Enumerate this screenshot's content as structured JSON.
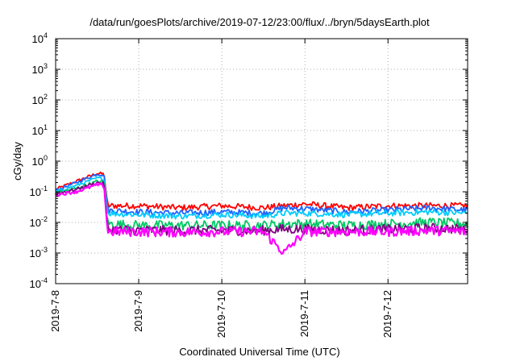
{
  "chart_data": {
    "type": "line",
    "title": "/data/run/goesPlots/archive/2019-07-12/23:00/flux/../bryn/5daysEarth.plot",
    "xlabel": "Coordinated Universal Time (UTC)",
    "ylabel": "cGy/day",
    "yscale": "log",
    "ylim": [
      0.0001,
      10000
    ],
    "xlim": [
      "2019-07-08T00:00",
      "2019-07-12T23:00"
    ],
    "grid": true,
    "y_ticks": [
      {
        "exp": "-4"
      },
      {
        "exp": "-3"
      },
      {
        "exp": "-2"
      },
      {
        "exp": "-1"
      },
      {
        "exp": "0"
      },
      {
        "exp": "1"
      },
      {
        "exp": "2"
      },
      {
        "exp": "3"
      },
      {
        "exp": "4"
      }
    ],
    "y_tick_base": "10",
    "x_ticks": [
      {
        "label": "2019-7-8",
        "day": 0
      },
      {
        "label": "2019-7-9",
        "day": 1
      },
      {
        "label": "2019-7-10",
        "day": 2
      },
      {
        "label": "2019-7-11",
        "day": 3
      },
      {
        "label": "2019-7-12",
        "day": 4
      }
    ],
    "series": [
      {
        "color": "#ff0000",
        "x": [
          "2019-07-08T00:00",
          "2019-07-08T06:00",
          "2019-07-08T12:00",
          "2019-07-08T14:00",
          "2019-07-08T15:00",
          "2019-07-09T00:00",
          "2019-07-09T12:00",
          "2019-07-10T00:00",
          "2019-07-10T12:00",
          "2019-07-10T18:00",
          "2019-07-11T00:00",
          "2019-07-11T12:00",
          "2019-07-12T00:00",
          "2019-07-12T12:00",
          "2019-07-12T23:00"
        ],
        "y": [
          0.12,
          0.22,
          0.4,
          0.38,
          0.035,
          0.035,
          0.03,
          0.035,
          0.03,
          0.035,
          0.04,
          0.03,
          0.035,
          0.035,
          0.035
        ]
      },
      {
        "color": "#1e64ff",
        "x": [
          "2019-07-08T00:00",
          "2019-07-08T06:00",
          "2019-07-08T12:00",
          "2019-07-08T14:00",
          "2019-07-08T15:00",
          "2019-07-09T00:00",
          "2019-07-09T12:00",
          "2019-07-10T00:00",
          "2019-07-10T12:00",
          "2019-07-10T18:00",
          "2019-07-11T00:00",
          "2019-07-11T12:00",
          "2019-07-12T00:00",
          "2019-07-12T12:00",
          "2019-07-12T23:00"
        ],
        "y": [
          0.11,
          0.2,
          0.38,
          0.36,
          0.025,
          0.022,
          0.02,
          0.022,
          0.02,
          0.03,
          0.028,
          0.022,
          0.025,
          0.03,
          0.025
        ]
      },
      {
        "color": "#00ccff",
        "x": [
          "2019-07-08T00:00",
          "2019-07-08T06:00",
          "2019-07-08T12:00",
          "2019-07-08T14:00",
          "2019-07-08T15:00",
          "2019-07-09T00:00",
          "2019-07-09T12:00",
          "2019-07-10T00:00",
          "2019-07-10T12:00",
          "2019-07-10T18:00",
          "2019-07-11T00:00",
          "2019-07-11T12:00",
          "2019-07-12T00:00",
          "2019-07-12T12:00",
          "2019-07-12T23:00"
        ],
        "y": [
          0.1,
          0.16,
          0.28,
          0.27,
          0.02,
          0.018,
          0.016,
          0.018,
          0.016,
          0.02,
          0.02,
          0.018,
          0.02,
          0.022,
          0.02
        ]
      },
      {
        "color": "#00c864",
        "x": [
          "2019-07-08T00:00",
          "2019-07-08T06:00",
          "2019-07-08T12:00",
          "2019-07-08T14:00",
          "2019-07-08T15:00",
          "2019-07-09T00:00",
          "2019-07-09T12:00",
          "2019-07-10T00:00",
          "2019-07-10T12:00",
          "2019-07-10T18:00",
          "2019-07-11T00:00",
          "2019-07-11T12:00",
          "2019-07-12T00:00",
          "2019-07-12T12:00",
          "2019-07-12T23:00"
        ],
        "y": [
          0.09,
          0.13,
          0.22,
          0.21,
          0.009,
          0.008,
          0.008,
          0.008,
          0.008,
          0.009,
          0.009,
          0.008,
          0.009,
          0.01,
          0.009
        ]
      },
      {
        "color": "#800080",
        "x": [
          "2019-07-08T00:00",
          "2019-07-08T06:00",
          "2019-07-08T12:00",
          "2019-07-08T14:00",
          "2019-07-08T15:00",
          "2019-07-09T00:00",
          "2019-07-09T12:00",
          "2019-07-10T00:00",
          "2019-07-10T12:00",
          "2019-07-10T18:00",
          "2019-07-11T00:00",
          "2019-07-11T12:00",
          "2019-07-12T00:00",
          "2019-07-12T12:00",
          "2019-07-12T23:00"
        ],
        "y": [
          0.085,
          0.12,
          0.2,
          0.19,
          0.006,
          0.0055,
          0.0055,
          0.0055,
          0.0055,
          0.006,
          0.006,
          0.0055,
          0.006,
          0.0065,
          0.006
        ]
      },
      {
        "color": "#ff00ff",
        "x": [
          "2019-07-08T00:00",
          "2019-07-08T06:00",
          "2019-07-08T12:00",
          "2019-07-08T14:00",
          "2019-07-08T15:00",
          "2019-07-09T00:00",
          "2019-07-09T12:00",
          "2019-07-10T00:00",
          "2019-07-10T12:00",
          "2019-07-10T18:00",
          "2019-07-11T00:00",
          "2019-07-11T12:00",
          "2019-07-12T00:00",
          "2019-07-12T12:00",
          "2019-07-12T23:00"
        ],
        "y": [
          0.08,
          0.1,
          0.17,
          0.16,
          0.005,
          0.005,
          0.0048,
          0.005,
          0.005,
          0.001,
          0.005,
          0.005,
          0.005,
          0.0055,
          0.005
        ]
      }
    ]
  }
}
